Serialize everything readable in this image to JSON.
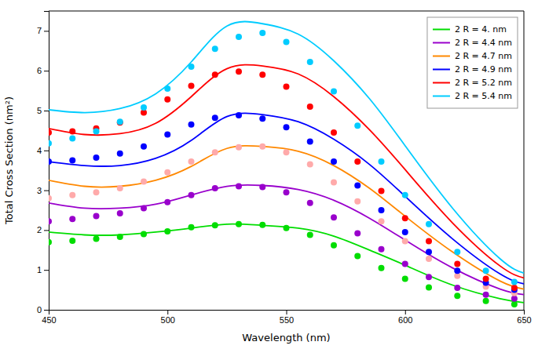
{
  "chart_data": {
    "type": "line",
    "title": "",
    "x_label": "Wavelength (nm)",
    "y_label": "Total Cross Section (nm²)",
    "xlim": [
      450,
      650
    ],
    "ylim": [
      0,
      7.5
    ],
    "xticks": [
      450,
      500,
      550,
      600,
      650
    ],
    "yticks": [
      0,
      1,
      2,
      3,
      4,
      5,
      6,
      7
    ],
    "legend": "upper right",
    "grid": false,
    "series": [
      {
        "name": "2 R = 4. nm",
        "type": "line",
        "color": "#00dd00",
        "x": [
          450,
          465,
          480,
          495,
          510,
          525,
          540,
          555,
          570,
          585,
          600,
          620,
          640,
          650
        ],
        "values": [
          1.95,
          1.88,
          1.88,
          1.95,
          2.05,
          2.15,
          2.12,
          2.05,
          1.85,
          1.5,
          1.12,
          0.62,
          0.28,
          0.18
        ]
      },
      {
        "type": "scatter",
        "marker": "circle",
        "color": "#00dd00",
        "x": [
          450,
          460,
          470,
          480,
          490,
          500,
          510,
          520,
          530,
          540,
          550,
          560,
          570,
          580,
          590,
          600,
          610,
          622,
          634,
          646
        ],
        "values": [
          1.7,
          1.73,
          1.78,
          1.83,
          1.9,
          1.97,
          2.07,
          2.12,
          2.15,
          2.13,
          2.05,
          1.88,
          1.62,
          1.35,
          1.05,
          0.78,
          0.56,
          0.35,
          0.22,
          0.14
        ]
      },
      {
        "name": "2 R = 4.4 nm",
        "type": "line",
        "color": "#9900cc",
        "x": [
          450,
          465,
          480,
          495,
          510,
          525,
          540,
          555,
          570,
          585,
          600,
          620,
          640,
          650
        ],
        "values": [
          2.68,
          2.55,
          2.55,
          2.65,
          2.88,
          3.1,
          3.12,
          3.02,
          2.75,
          2.3,
          1.75,
          1.05,
          0.52,
          0.38
        ]
      },
      {
        "type": "scatter",
        "marker": "circle",
        "color": "#9900cc",
        "x": [
          450,
          460,
          470,
          480,
          490,
          500,
          510,
          520,
          530,
          540,
          550,
          560,
          570,
          580,
          590,
          600,
          610,
          622,
          634,
          646
        ],
        "values": [
          2.22,
          2.28,
          2.35,
          2.42,
          2.55,
          2.7,
          2.88,
          3.05,
          3.1,
          3.08,
          2.95,
          2.68,
          2.32,
          1.92,
          1.52,
          1.15,
          0.82,
          0.55,
          0.38,
          0.28
        ]
      },
      {
        "name": "2 R = 4.7 nm",
        "type": "line",
        "color": "#ff8800",
        "x": [
          450,
          465,
          480,
          495,
          510,
          525,
          540,
          555,
          570,
          585,
          600,
          620,
          640,
          650
        ],
        "values": [
          3.25,
          3.1,
          3.1,
          3.25,
          3.6,
          4.05,
          4.1,
          3.98,
          3.62,
          3.05,
          2.35,
          1.45,
          0.72,
          0.52
        ]
      },
      {
        "type": "scatter",
        "marker": "circle",
        "color": "#ffaaaa",
        "x": [
          450,
          460,
          470,
          480,
          490,
          500,
          510,
          520,
          530,
          540,
          550,
          560,
          570,
          580,
          590,
          600,
          610,
          622,
          634,
          646
        ],
        "values": [
          2.8,
          2.88,
          2.95,
          3.05,
          3.22,
          3.45,
          3.72,
          3.95,
          4.08,
          4.1,
          3.95,
          3.65,
          3.2,
          2.72,
          2.22,
          1.72,
          1.28,
          0.85,
          0.58,
          0.42
        ]
      },
      {
        "name": "2 R = 4.9 nm",
        "type": "line",
        "color": "#0000ff",
        "x": [
          450,
          465,
          480,
          495,
          510,
          525,
          540,
          555,
          570,
          585,
          600,
          620,
          640,
          650
        ],
        "values": [
          3.72,
          3.62,
          3.62,
          3.8,
          4.25,
          4.85,
          4.9,
          4.72,
          4.28,
          3.65,
          2.85,
          1.78,
          0.9,
          0.65
        ]
      },
      {
        "type": "scatter",
        "marker": "circle",
        "color": "#0000ff",
        "x": [
          450,
          460,
          470,
          480,
          490,
          500,
          510,
          520,
          530,
          540,
          550,
          560,
          570,
          580,
          590,
          600,
          610,
          622,
          634,
          646
        ],
        "values": [
          3.72,
          3.75,
          3.82,
          3.92,
          4.1,
          4.4,
          4.65,
          4.82,
          4.88,
          4.8,
          4.58,
          4.22,
          3.72,
          3.12,
          2.5,
          1.95,
          1.45,
          0.98,
          0.68,
          0.5
        ]
      },
      {
        "name": "2 R = 5.2 nm",
        "type": "line",
        "color": "#ff0000",
        "x": [
          450,
          465,
          480,
          495,
          510,
          525,
          540,
          555,
          570,
          585,
          600,
          620,
          640,
          650
        ],
        "values": [
          4.55,
          4.4,
          4.42,
          4.68,
          5.35,
          6.05,
          6.12,
          5.92,
          5.35,
          4.52,
          3.52,
          2.18,
          1.1,
          0.8
        ]
      },
      {
        "type": "scatter",
        "marker": "circle",
        "color": "#ff0000",
        "x": [
          450,
          460,
          470,
          480,
          490,
          500,
          510,
          520,
          530,
          540,
          550,
          560,
          570,
          580,
          590,
          600,
          610,
          622,
          634,
          646
        ],
        "values": [
          4.45,
          4.48,
          4.55,
          4.7,
          4.95,
          5.28,
          5.62,
          5.9,
          5.98,
          5.9,
          5.6,
          5.1,
          4.45,
          3.72,
          2.98,
          2.3,
          1.72,
          1.15,
          0.78,
          0.55
        ]
      },
      {
        "name": "2 R = 5.4 nm",
        "type": "line",
        "color": "#00ccff",
        "x": [
          450,
          465,
          480,
          495,
          510,
          525,
          540,
          555,
          570,
          585,
          600,
          620,
          640,
          650
        ],
        "values": [
          5.02,
          4.95,
          5.05,
          5.42,
          6.22,
          7.12,
          7.18,
          6.92,
          6.25,
          5.3,
          4.12,
          2.55,
          1.28,
          0.92
        ]
      },
      {
        "type": "scatter",
        "marker": "circle",
        "color": "#00ccff",
        "x": [
          450,
          460,
          470,
          480,
          490,
          500,
          510,
          520,
          530,
          540,
          550,
          560,
          570,
          580,
          590,
          600,
          610,
          622,
          634,
          646
        ],
        "values": [
          4.18,
          4.3,
          4.48,
          4.72,
          5.08,
          5.55,
          6.1,
          6.55,
          6.85,
          6.95,
          6.72,
          6.22,
          5.48,
          4.62,
          3.72,
          2.88,
          2.15,
          1.45,
          0.98,
          0.7
        ]
      }
    ]
  }
}
